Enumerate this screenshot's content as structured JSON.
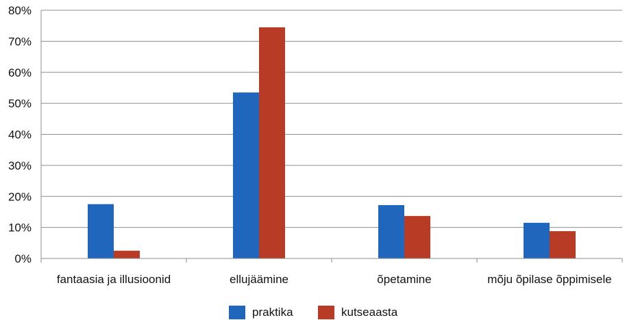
{
  "chart_data": {
    "type": "bar",
    "title": "",
    "xlabel": "",
    "ylabel": "",
    "categories": [
      "fantaasia ja illusioonid",
      "ellujäämine",
      "õpetamine",
      "mõju õpilase õppimisele"
    ],
    "series": [
      {
        "name": "praktika",
        "color": "#1f66bc",
        "values": [
          17.5,
          53.5,
          17.2,
          11.5
        ]
      },
      {
        "name": "kutseaasta",
        "color": "#b83b26",
        "values": [
          2.5,
          74.5,
          13.7,
          8.8
        ]
      }
    ],
    "ylim": [
      0,
      80
    ],
    "yticks": [
      "0%",
      "10%",
      "20%",
      "30%",
      "40%",
      "50%",
      "60%",
      "70%",
      "80%"
    ],
    "grid": true,
    "legend_position": "bottom"
  }
}
